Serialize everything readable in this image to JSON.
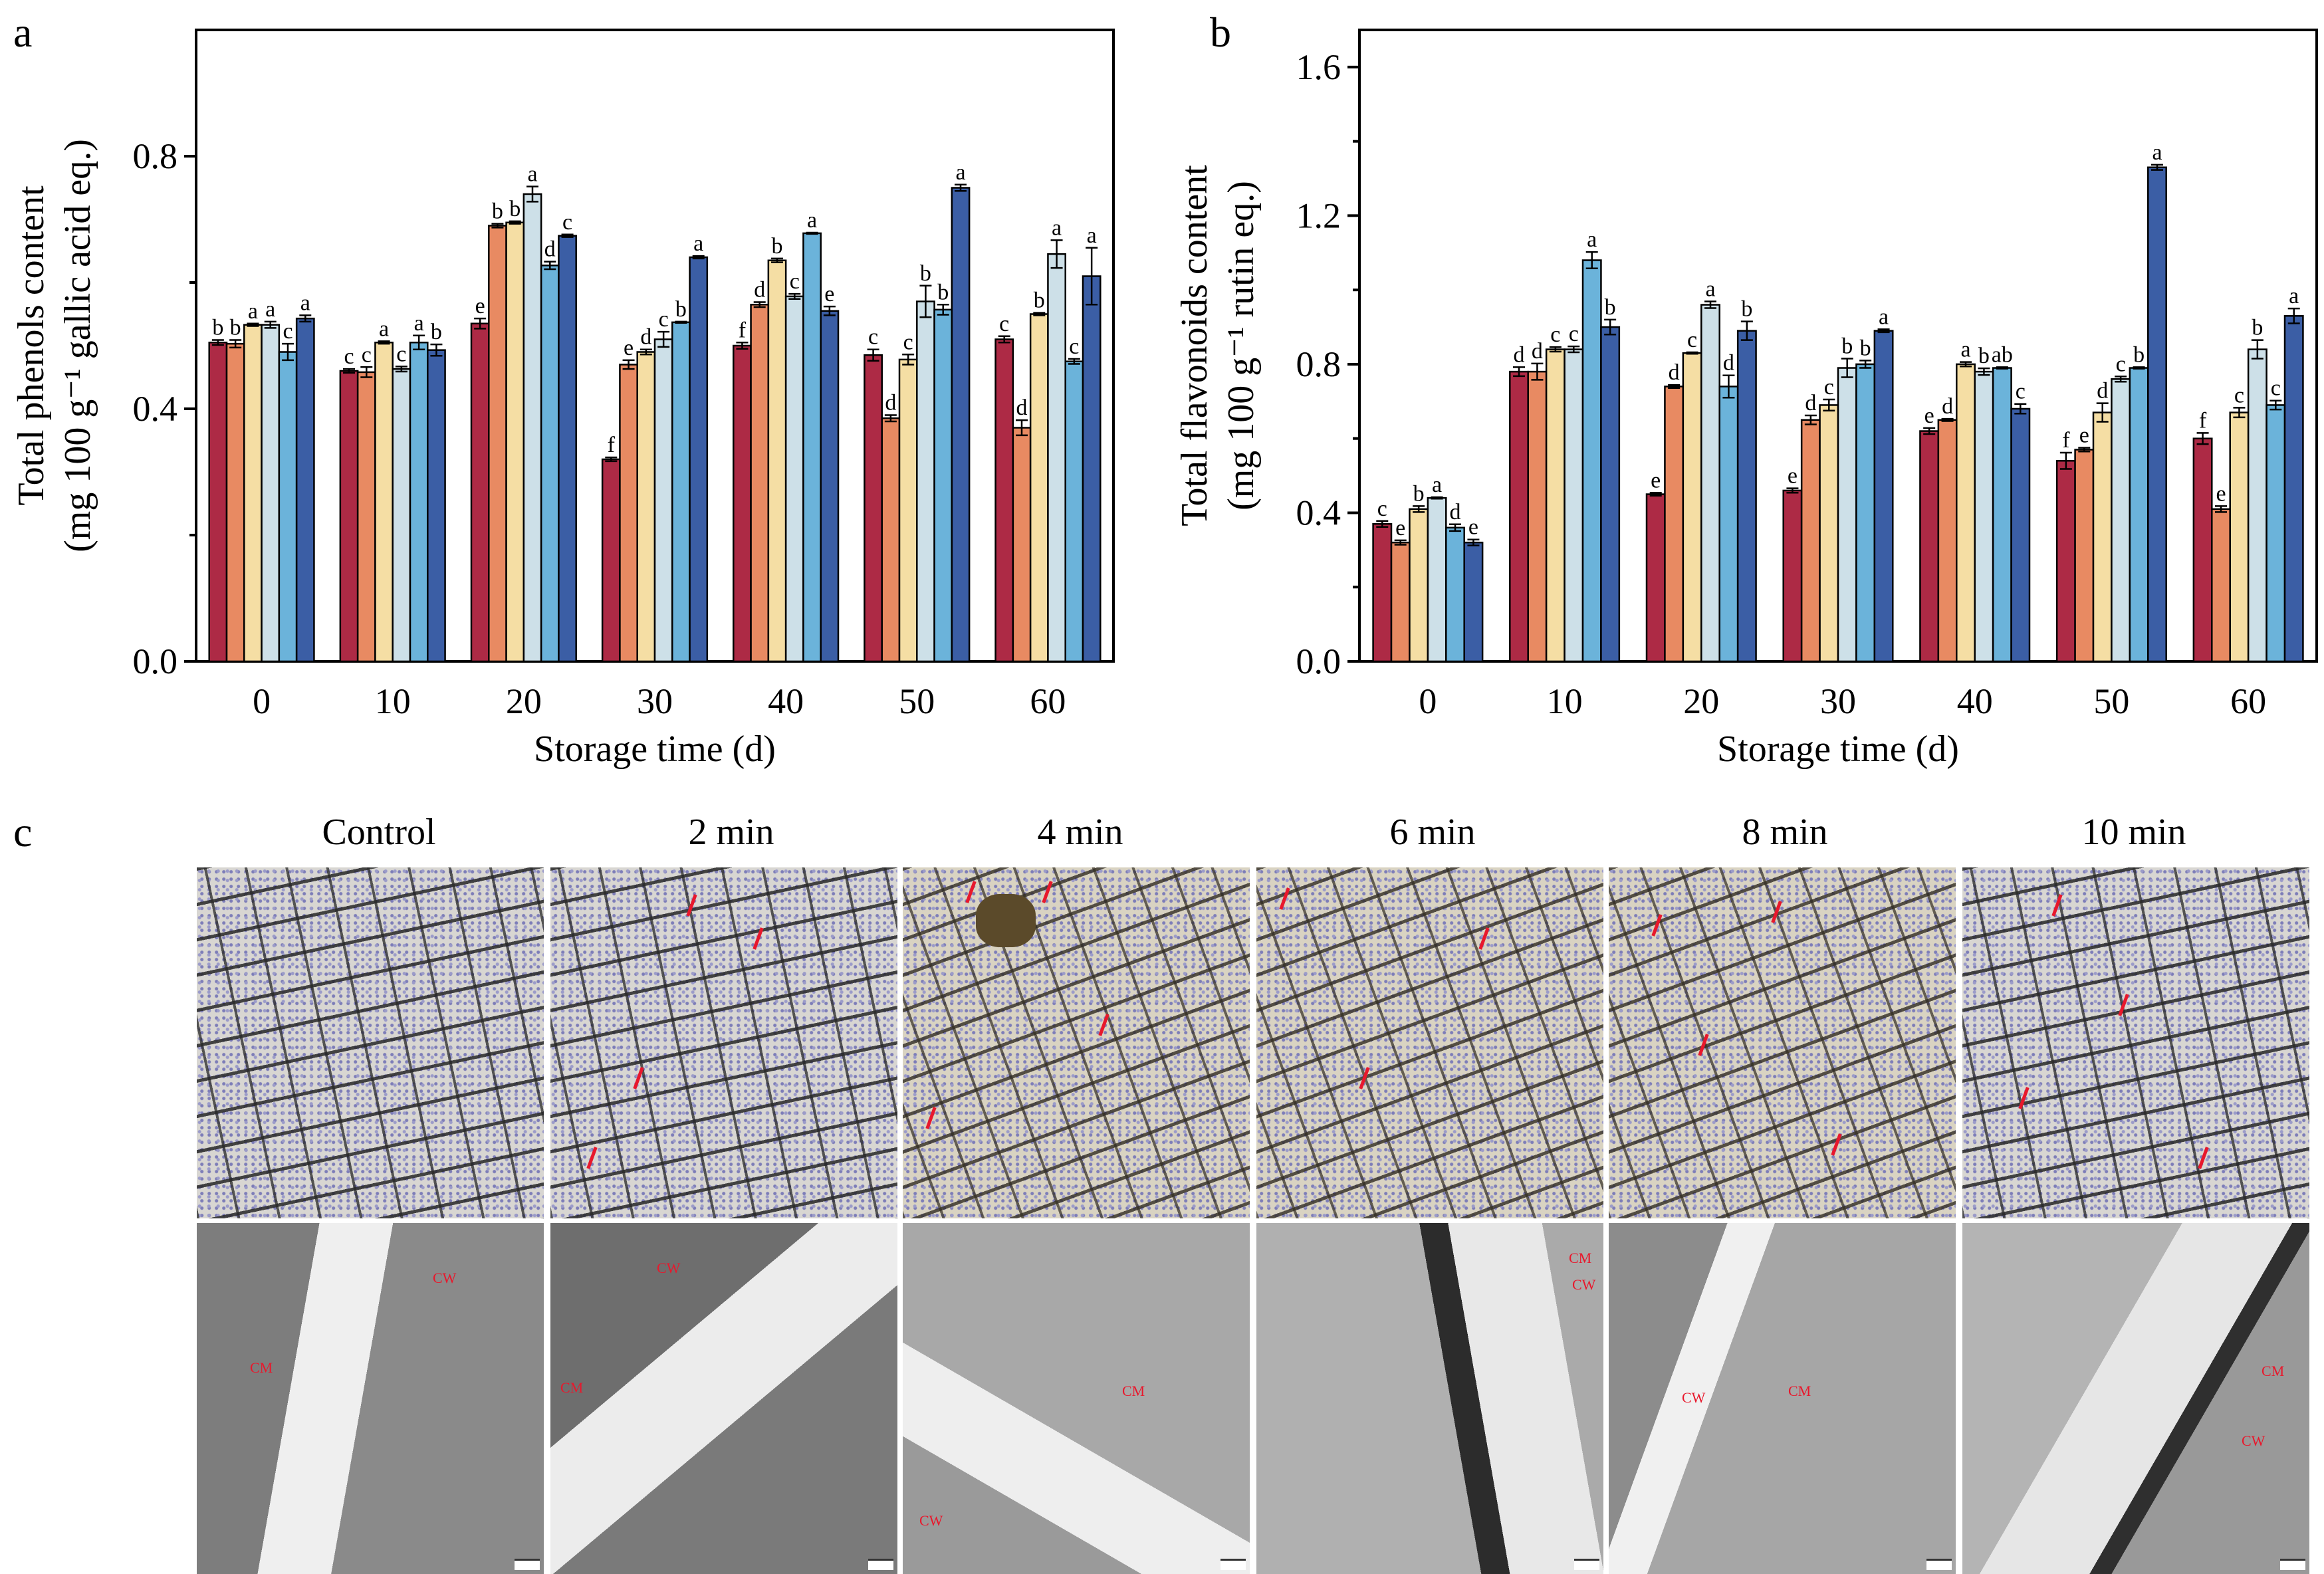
{
  "figure": {
    "panel_letters": [
      "a",
      "b",
      "c"
    ],
    "series_colors": [
      "#ad2a45",
      "#e88a62",
      "#f5dea4",
      "#cde0e8",
      "#6bb3da",
      "#3b5ea5"
    ],
    "micro": {
      "titles": [
        "Control",
        "2 min",
        "4 min",
        "6 min",
        "8 min",
        "10 min"
      ],
      "tem_labels": {
        "cw": "CW",
        "cm": "CM"
      }
    }
  },
  "chart_data": [
    {
      "type": "bar",
      "panel": "a",
      "title": "",
      "xlabel": "Storage time (d)",
      "ylabel_line1": "Total phenols content",
      "ylabel_line2": "(mg 100 g⁻¹ gallic acid eq.)",
      "ylim": [
        0,
        1.0
      ],
      "yticks": [
        0.0,
        0.4,
        0.8
      ],
      "ytick_labels": [
        "0.0",
        "0.4",
        "0.8"
      ],
      "minor_yticks": [
        0.2,
        0.6
      ],
      "categories": [
        "0",
        "10",
        "20",
        "30",
        "40",
        "50",
        "60"
      ],
      "grid": false,
      "series": [
        {
          "name": "Control",
          "values": [
            0.505,
            0.46,
            0.535,
            0.32,
            0.5,
            0.485,
            0.51
          ],
          "errors": [
            0.004,
            0.003,
            0.008,
            0.003,
            0.005,
            0.009,
            0.005
          ],
          "letters": [
            "b",
            "c",
            "e",
            "f",
            "f",
            "c",
            "c"
          ]
        },
        {
          "name": "2 min",
          "values": [
            0.503,
            0.458,
            0.69,
            0.47,
            0.565,
            0.385,
            0.37
          ],
          "errors": [
            0.006,
            0.008,
            0.003,
            0.007,
            0.004,
            0.005,
            0.012
          ],
          "letters": [
            "b",
            "c",
            "b",
            "e",
            "d",
            "d",
            "d"
          ]
        },
        {
          "name": "4 min",
          "values": [
            0.533,
            0.505,
            0.695,
            0.49,
            0.635,
            0.478,
            0.55
          ],
          "errors": [
            0.002,
            0.002,
            0.002,
            0.004,
            0.003,
            0.008,
            0.002
          ],
          "letters": [
            "a",
            "a",
            "b",
            "d",
            "b",
            "c",
            "b"
          ]
        },
        {
          "name": "6 min",
          "values": [
            0.533,
            0.463,
            0.74,
            0.51,
            0.578,
            0.57,
            0.645
          ],
          "errors": [
            0.005,
            0.004,
            0.012,
            0.012,
            0.004,
            0.025,
            0.022
          ],
          "letters": [
            "a",
            "c",
            "a",
            "c",
            "c",
            "b",
            "a"
          ]
        },
        {
          "name": "8 min",
          "values": [
            0.49,
            0.505,
            0.627,
            0.537,
            0.678,
            0.557,
            0.475
          ],
          "errors": [
            0.013,
            0.011,
            0.006,
            0.001,
            0.001,
            0.008,
            0.004
          ],
          "letters": [
            "c",
            "a",
            "d",
            "b",
            "a",
            "b",
            "c"
          ]
        },
        {
          "name": "10 min",
          "values": [
            0.543,
            0.493,
            0.674,
            0.64,
            0.555,
            0.75,
            0.61
          ],
          "errors": [
            0.005,
            0.009,
            0.002,
            0.002,
            0.007,
            0.005,
            0.045
          ],
          "letters": [
            "a",
            "b",
            "c",
            "a",
            "e",
            "a",
            "a"
          ]
        }
      ]
    },
    {
      "type": "bar",
      "panel": "b",
      "title": "",
      "xlabel": "Storage time (d)",
      "ylabel_line1": "Total flavonoids content",
      "ylabel_line2": "(mg 100 g⁻¹ rutin eq.)",
      "ylim": [
        0,
        1.7
      ],
      "yticks": [
        0.0,
        0.4,
        0.8,
        1.2,
        1.6
      ],
      "ytick_labels": [
        "0.0",
        "0.4",
        "0.8",
        "1.2",
        "1.6"
      ],
      "minor_yticks": [
        0.2,
        0.6,
        1.0,
        1.4
      ],
      "categories": [
        "0",
        "10",
        "20",
        "30",
        "40",
        "50",
        "60"
      ],
      "grid": false,
      "series": [
        {
          "name": "Control",
          "values": [
            0.37,
            0.78,
            0.45,
            0.46,
            0.62,
            0.54,
            0.6
          ],
          "errors": [
            0.008,
            0.012,
            0.004,
            0.006,
            0.008,
            0.022,
            0.015
          ],
          "letters": [
            "c",
            "d",
            "e",
            "e",
            "e",
            "f",
            "f"
          ]
        },
        {
          "name": "2 min",
          "values": [
            0.32,
            0.78,
            0.74,
            0.65,
            0.65,
            0.57,
            0.41
          ],
          "errors": [
            0.006,
            0.022,
            0.004,
            0.012,
            0.003,
            0.005,
            0.008
          ],
          "letters": [
            "e",
            "d",
            "d",
            "d",
            "d",
            "e",
            "e"
          ]
        },
        {
          "name": "4 min",
          "values": [
            0.41,
            0.84,
            0.83,
            0.69,
            0.8,
            0.67,
            0.67
          ],
          "errors": [
            0.008,
            0.006,
            0.002,
            0.015,
            0.006,
            0.025,
            0.013
          ],
          "letters": [
            "b",
            "c",
            "c",
            "c",
            "a",
            "d",
            "c"
          ]
        },
        {
          "name": "6 min",
          "values": [
            0.44,
            0.84,
            0.96,
            0.79,
            0.78,
            0.76,
            0.84
          ],
          "errors": [
            0.002,
            0.008,
            0.009,
            0.025,
            0.009,
            0.007,
            0.025
          ],
          "letters": [
            "a",
            "c",
            "a",
            "b",
            "b",
            "c",
            "b"
          ]
        },
        {
          "name": "8 min",
          "values": [
            0.36,
            1.08,
            0.74,
            0.8,
            0.79,
            0.79,
            0.69
          ],
          "errors": [
            0.009,
            0.022,
            0.03,
            0.01,
            0.002,
            0.002,
            0.012
          ],
          "letters": [
            "d",
            "a",
            "d",
            "b",
            "ab",
            "b",
            "c"
          ]
        },
        {
          "name": "10 min",
          "values": [
            0.32,
            0.9,
            0.89,
            0.89,
            0.68,
            1.33,
            0.93
          ],
          "errors": [
            0.008,
            0.02,
            0.025,
            0.004,
            0.013,
            0.007,
            0.02
          ],
          "letters": [
            "e",
            "b",
            "b",
            "a",
            "c",
            "a",
            "a"
          ]
        }
      ]
    }
  ]
}
